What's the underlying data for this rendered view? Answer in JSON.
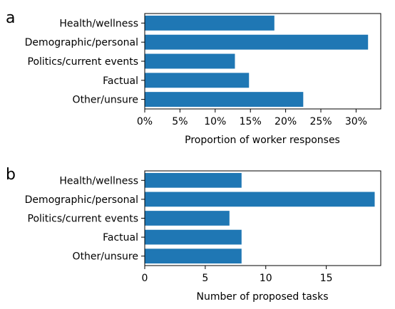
{
  "chart_data": [
    {
      "type": "bar",
      "orientation": "horizontal",
      "panel_label": "a",
      "categories": [
        "Health/wellness",
        "Demographic/personal",
        "Politics/current events",
        "Factual",
        "Other/unsure"
      ],
      "values": [
        0.184,
        0.317,
        0.128,
        0.148,
        0.225
      ],
      "xlabel": "Proportion of worker responses",
      "ylabel": "",
      "xlim": [
        0,
        0.335
      ],
      "xticks": [
        0,
        0.05,
        0.1,
        0.15,
        0.2,
        0.25,
        0.3
      ],
      "xtick_labels": [
        "0%",
        "5%",
        "10%",
        "15%",
        "20%",
        "25%",
        "30%"
      ],
      "grid": false,
      "color": "#1f77b4"
    },
    {
      "type": "bar",
      "orientation": "horizontal",
      "panel_label": "b",
      "categories": [
        "Health/wellness",
        "Demographic/personal",
        "Politics/current events",
        "Factual",
        "Other/unsure"
      ],
      "values": [
        8,
        19,
        7,
        8,
        8
      ],
      "xlabel": "Number of proposed tasks",
      "ylabel": "",
      "xlim": [
        0,
        19.5
      ],
      "xticks": [
        0,
        5,
        10,
        15
      ],
      "xtick_labels": [
        "0",
        "5",
        "10",
        "15"
      ],
      "grid": false,
      "color": "#1f77b4"
    }
  ]
}
